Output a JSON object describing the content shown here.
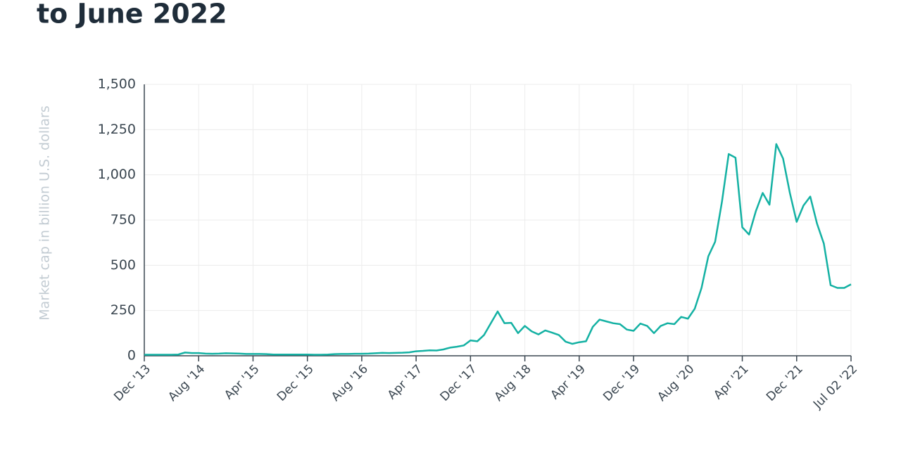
{
  "chart_data": {
    "type": "line",
    "title": "to June 2022",
    "y_label": "Market cap in billion U.S. dollars",
    "categories": [
      "Dec '13",
      null,
      null,
      null,
      null,
      null,
      null,
      null,
      "Aug '14",
      null,
      null,
      null,
      null,
      null,
      null,
      null,
      "Apr '15",
      null,
      null,
      null,
      null,
      null,
      null,
      null,
      "Dec '15",
      null,
      null,
      null,
      null,
      null,
      null,
      null,
      "Aug '16",
      null,
      null,
      null,
      null,
      null,
      null,
      null,
      "Apr '17",
      null,
      null,
      null,
      null,
      null,
      null,
      null,
      "Dec '17",
      null,
      null,
      null,
      null,
      null,
      null,
      null,
      "Aug '18",
      null,
      null,
      null,
      null,
      null,
      null,
      null,
      "Apr '19",
      null,
      null,
      null,
      null,
      null,
      null,
      null,
      "Dec '19",
      null,
      null,
      null,
      null,
      null,
      null,
      null,
      "Aug '20",
      null,
      null,
      null,
      null,
      null,
      null,
      null,
      "Apr '21",
      null,
      null,
      null,
      null,
      null,
      null,
      null,
      "Dec '21",
      null,
      null,
      null,
      null,
      null,
      null,
      null,
      "Jul 02 '22"
    ],
    "series": [
      {
        "color": "#14b1a3",
        "values": [
          6,
          6,
          6,
          6,
          6,
          7,
          18,
          15,
          15,
          12,
          11,
          12,
          14,
          13,
          12,
          10,
          10,
          10,
          9,
          7,
          7,
          7,
          7,
          7,
          7,
          6,
          6,
          7,
          9,
          10,
          10,
          11,
          11,
          12,
          14,
          16,
          15,
          16,
          17,
          19,
          25,
          27,
          30,
          29,
          35,
          45,
          50,
          57,
          85,
          80,
          115,
          180,
          245,
          180,
          182,
          125,
          165,
          135,
          118,
          140,
          128,
          115,
          78,
          66,
          75,
          80,
          160,
          200,
          190,
          180,
          175,
          145,
          138,
          178,
          165,
          125,
          165,
          180,
          175,
          215,
          205,
          260,
          375,
          550,
          630,
          850,
          1115,
          1095,
          710,
          670,
          800,
          900,
          835,
          1170,
          1090,
          900,
          740,
          830,
          880,
          730,
          620,
          390,
          375,
          375,
          395
        ]
      }
    ],
    "ylim": [
      0,
      1500
    ],
    "yticks": [
      0,
      250,
      500,
      750,
      {
        "value": 1000,
        "label": "1,000"
      },
      {
        "value": 1250,
        "label": "1,250"
      },
      {
        "value": 1500,
        "label": "1,500"
      }
    ],
    "grid": true
  }
}
